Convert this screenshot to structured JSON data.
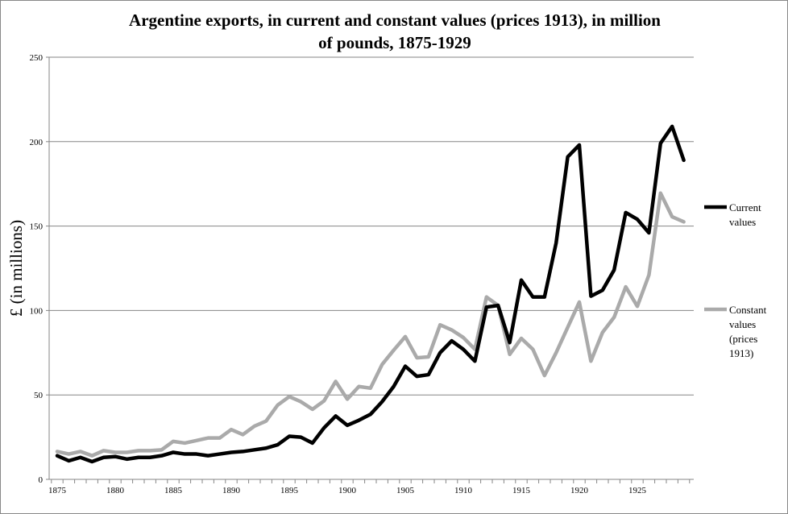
{
  "chart_data": {
    "type": "line",
    "title_lines": [
      "Argentine exports, in current and constant values (prices 1913), in million",
      "of pounds, 1875-1929"
    ],
    "xlabel": "",
    "ylabel": "£ (in millions)",
    "ylim": [
      0,
      250
    ],
    "xlim": [
      1875,
      1929
    ],
    "yticks": [
      "0",
      "50",
      "100",
      "150",
      "200",
      "250"
    ],
    "xticks": [
      "1875",
      "1880",
      "1885",
      "1890",
      "1895",
      "1900",
      "1905",
      "1910",
      "1915",
      "1920",
      "1925"
    ],
    "grid": "horizontal",
    "legend_position": "right",
    "x": [
      1875,
      1876,
      1877,
      1878,
      1879,
      1880,
      1881,
      1882,
      1883,
      1884,
      1885,
      1886,
      1887,
      1888,
      1889,
      1890,
      1891,
      1892,
      1893,
      1894,
      1895,
      1896,
      1897,
      1898,
      1899,
      1900,
      1901,
      1902,
      1903,
      1904,
      1905,
      1906,
      1907,
      1908,
      1909,
      1910,
      1911,
      1912,
      1913,
      1914,
      1915,
      1916,
      1917,
      1918,
      1919,
      1920,
      1921,
      1922,
      1923,
      1924,
      1925,
      1926,
      1927,
      1928,
      1929
    ],
    "series": [
      {
        "name": "Current values",
        "legend_lines": [
          "Current",
          "values"
        ],
        "color": "#000000",
        "values": [
          14,
          11,
          13,
          10.5,
          13,
          13.5,
          12,
          13,
          13,
          14,
          16,
          15,
          15,
          14,
          15,
          16,
          16.5,
          17.5,
          18.5,
          20.5,
          25.5,
          25,
          21.5,
          30.5,
          37.5,
          32,
          35,
          38.5,
          46,
          55,
          67,
          61,
          62,
          75,
          82,
          77,
          70,
          102,
          103,
          81,
          118,
          108,
          108,
          140,
          191,
          198,
          108.5,
          112,
          124,
          158,
          154,
          146,
          199,
          209,
          189
        ]
      },
      {
        "name": "Constant values (prices 1913)",
        "legend_lines": [
          "Constant",
          "values",
          "(prices",
          "1913)"
        ],
        "color": "#aaaaaa",
        "values": [
          16.5,
          15,
          16.5,
          14,
          17,
          16,
          16,
          17,
          17,
          17.5,
          22.5,
          21.5,
          23,
          24.5,
          24.5,
          29.5,
          26.5,
          31.5,
          34.5,
          44,
          49,
          46,
          41.5,
          46.5,
          58,
          47.5,
          55,
          54,
          68,
          76.5,
          84.5,
          72,
          72.5,
          91.5,
          88.5,
          84,
          77,
          108,
          103,
          74,
          83.5,
          77,
          61.5,
          75,
          90,
          105,
          70,
          87,
          96,
          114,
          102.5,
          121,
          169.5,
          155.5,
          152.5
        ]
      }
    ]
  }
}
